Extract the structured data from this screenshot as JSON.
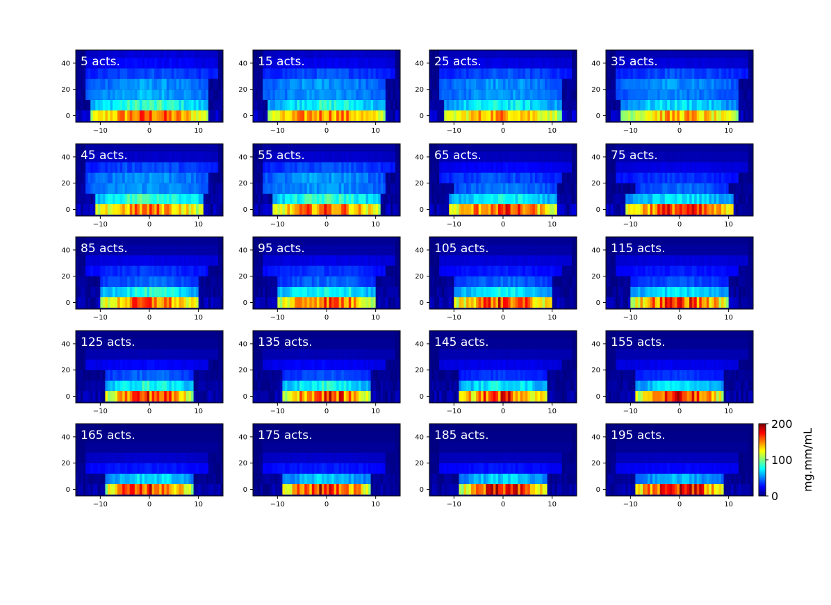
{
  "figure": {
    "colorbar": {
      "label": "mg.mm/mL",
      "ticks": [
        0,
        100,
        200
      ],
      "range": [
        0,
        200
      ],
      "colormap": "jet"
    }
  },
  "chart_data": {
    "type": "heatmap",
    "xlim": [
      -15,
      15
    ],
    "ylim": [
      -5,
      50
    ],
    "xticks": [
      -10,
      0,
      10
    ],
    "yticks": [
      0,
      20,
      40
    ],
    "colormap": "jet",
    "vmin": 0,
    "vmax": 200,
    "row_centers": [
      0,
      8,
      16,
      24,
      32,
      40,
      48
    ],
    "panels": [
      {
        "label": "5 acts.",
        "rows": [
          [
            -12,
            12,
            155,
            60
          ],
          [
            -12,
            12,
            85,
            25
          ],
          [
            -13,
            12,
            60,
            25
          ],
          [
            -13,
            12,
            55,
            20
          ],
          [
            -13,
            14,
            40,
            15
          ],
          [
            -13,
            14,
            25,
            10
          ],
          [
            -13,
            14,
            18,
            8
          ]
        ]
      },
      {
        "label": "15 acts.",
        "rows": [
          [
            -12,
            12,
            150,
            60
          ],
          [
            -12,
            12,
            80,
            25
          ],
          [
            -13,
            12,
            55,
            25
          ],
          [
            -13,
            12,
            55,
            20
          ],
          [
            -13,
            14,
            40,
            15
          ],
          [
            -13,
            14,
            22,
            10
          ],
          [
            -13,
            14,
            15,
            8
          ]
        ]
      },
      {
        "label": "25 acts.",
        "rows": [
          [
            -12,
            12,
            145,
            60
          ],
          [
            -12,
            12,
            75,
            25
          ],
          [
            -13,
            12,
            55,
            25
          ],
          [
            -13,
            12,
            55,
            20
          ],
          [
            -13,
            14,
            40,
            15
          ],
          [
            -13,
            14,
            20,
            10
          ],
          [
            -13,
            14,
            12,
            8
          ]
        ]
      },
      {
        "label": "35 acts.",
        "rows": [
          [
            -12,
            12,
            140,
            55
          ],
          [
            -12,
            12,
            70,
            25
          ],
          [
            -13,
            12,
            50,
            25
          ],
          [
            -13,
            12,
            55,
            20
          ],
          [
            -13,
            14,
            40,
            15
          ],
          [
            -13,
            14,
            18,
            10
          ],
          [
            -13,
            14,
            10,
            8
          ]
        ]
      },
      {
        "label": "45 acts.",
        "rows": [
          [
            -11,
            11,
            150,
            55
          ],
          [
            -11,
            11,
            90,
            30
          ],
          [
            -13,
            12,
            55,
            25
          ],
          [
            -13,
            12,
            55,
            20
          ],
          [
            -13,
            14,
            40,
            15
          ],
          [
            -13,
            14,
            15,
            8
          ],
          [
            -13,
            14,
            8,
            6
          ]
        ]
      },
      {
        "label": "55 acts.",
        "rows": [
          [
            -11,
            11,
            155,
            55
          ],
          [
            -11,
            11,
            85,
            30
          ],
          [
            -13,
            12,
            55,
            25
          ],
          [
            -13,
            12,
            55,
            20
          ],
          [
            -13,
            14,
            40,
            15
          ],
          [
            -13,
            14,
            15,
            8
          ],
          [
            -13,
            14,
            8,
            6
          ]
        ]
      },
      {
        "label": "65 acts.",
        "rows": [
          [
            -11,
            11,
            160,
            55
          ],
          [
            -11,
            11,
            75,
            30
          ],
          [
            -10,
            11,
            50,
            20
          ],
          [
            -13,
            12,
            40,
            15
          ],
          [
            -13,
            14,
            25,
            12
          ],
          [
            -13,
            14,
            12,
            8
          ],
          [
            -13,
            14,
            6,
            5
          ]
        ]
      },
      {
        "label": "75 acts.",
        "rows": [
          [
            -11,
            11,
            165,
            55
          ],
          [
            -11,
            11,
            70,
            30
          ],
          [
            -9,
            10,
            45,
            20
          ],
          [
            -13,
            12,
            35,
            15
          ],
          [
            -13,
            14,
            20,
            12
          ],
          [
            -13,
            14,
            10,
            8
          ],
          [
            -13,
            14,
            6,
            5
          ]
        ]
      },
      {
        "label": "85 acts.",
        "rows": [
          [
            -10,
            10,
            155,
            50
          ],
          [
            -10,
            10,
            80,
            30
          ],
          [
            -10,
            10,
            45,
            20
          ],
          [
            -13,
            12,
            35,
            15
          ],
          [
            -13,
            14,
            20,
            12
          ],
          [
            -13,
            14,
            8,
            6
          ],
          [
            -13,
            14,
            4,
            4
          ]
        ]
      },
      {
        "label": "95 acts.",
        "rows": [
          [
            -10,
            10,
            160,
            50
          ],
          [
            -10,
            10,
            80,
            30
          ],
          [
            -10,
            10,
            45,
            20
          ],
          [
            -13,
            12,
            35,
            15
          ],
          [
            -13,
            14,
            20,
            12
          ],
          [
            -13,
            14,
            8,
            6
          ],
          [
            -13,
            14,
            4,
            4
          ]
        ]
      },
      {
        "label": "105 acts.",
        "rows": [
          [
            -10,
            10,
            165,
            50
          ],
          [
            -10,
            10,
            75,
            30
          ],
          [
            -10,
            10,
            45,
            20
          ],
          [
            -13,
            12,
            30,
            15
          ],
          [
            -13,
            14,
            18,
            12
          ],
          [
            -13,
            14,
            8,
            6
          ],
          [
            -13,
            14,
            4,
            4
          ]
        ]
      },
      {
        "label": "115 acts.",
        "rows": [
          [
            -10,
            10,
            165,
            50
          ],
          [
            -10,
            10,
            70,
            30
          ],
          [
            -10,
            10,
            40,
            20
          ],
          [
            -13,
            12,
            30,
            15
          ],
          [
            -13,
            14,
            18,
            12
          ],
          [
            -13,
            14,
            6,
            5
          ],
          [
            -13,
            14,
            3,
            3
          ]
        ]
      },
      {
        "label": "125 acts.",
        "rows": [
          [
            -9,
            9,
            165,
            45
          ],
          [
            -9,
            9,
            80,
            30
          ],
          [
            -9,
            9,
            45,
            20
          ],
          [
            -13,
            12,
            25,
            12
          ],
          [
            -13,
            14,
            10,
            8
          ],
          [
            -13,
            14,
            4,
            4
          ],
          [
            -13,
            14,
            2,
            2
          ]
        ]
      },
      {
        "label": "135 acts.",
        "rows": [
          [
            -9,
            9,
            165,
            45
          ],
          [
            -9,
            9,
            80,
            30
          ],
          [
            -9,
            9,
            40,
            20
          ],
          [
            -13,
            12,
            25,
            12
          ],
          [
            -13,
            14,
            10,
            8
          ],
          [
            -13,
            14,
            4,
            4
          ],
          [
            -13,
            14,
            2,
            2
          ]
        ]
      },
      {
        "label": "145 acts.",
        "rows": [
          [
            -9,
            9,
            165,
            45
          ],
          [
            -9,
            9,
            75,
            30
          ],
          [
            -9,
            9,
            35,
            20
          ],
          [
            -13,
            12,
            22,
            12
          ],
          [
            -13,
            14,
            10,
            8
          ],
          [
            -13,
            14,
            4,
            4
          ],
          [
            -13,
            14,
            2,
            2
          ]
        ]
      },
      {
        "label": "155 acts.",
        "rows": [
          [
            -9,
            9,
            165,
            45
          ],
          [
            -9,
            9,
            70,
            30
          ],
          [
            -9,
            9,
            35,
            20
          ],
          [
            -13,
            12,
            22,
            12
          ],
          [
            -13,
            14,
            10,
            8
          ],
          [
            -13,
            14,
            4,
            4
          ],
          [
            -13,
            14,
            2,
            2
          ]
        ]
      },
      {
        "label": "165 acts.",
        "rows": [
          [
            -9,
            9,
            170,
            40
          ],
          [
            -9,
            9,
            70,
            25
          ],
          [
            -13,
            12,
            30,
            15
          ],
          [
            -13,
            12,
            15,
            10
          ],
          [
            -13,
            14,
            5,
            5
          ],
          [
            -13,
            14,
            2,
            2
          ],
          [
            -13,
            14,
            1,
            1
          ]
        ]
      },
      {
        "label": "175 acts.",
        "rows": [
          [
            -9,
            9,
            170,
            40
          ],
          [
            -9,
            9,
            65,
            25
          ],
          [
            -13,
            12,
            30,
            15
          ],
          [
            -13,
            12,
            15,
            10
          ],
          [
            -13,
            14,
            5,
            5
          ],
          [
            -13,
            14,
            2,
            2
          ],
          [
            -13,
            14,
            1,
            1
          ]
        ]
      },
      {
        "label": "185 acts.",
        "rows": [
          [
            -9,
            9,
            170,
            40
          ],
          [
            -9,
            9,
            65,
            25
          ],
          [
            -13,
            12,
            28,
            15
          ],
          [
            -13,
            12,
            12,
            10
          ],
          [
            -13,
            14,
            4,
            4
          ],
          [
            -13,
            14,
            2,
            2
          ],
          [
            -13,
            14,
            1,
            1
          ]
        ]
      },
      {
        "label": "195 acts.",
        "rows": [
          [
            -9,
            9,
            175,
            40
          ],
          [
            -9,
            9,
            60,
            25
          ],
          [
            -13,
            12,
            25,
            15
          ],
          [
            -13,
            12,
            12,
            10
          ],
          [
            -13,
            14,
            4,
            4
          ],
          [
            -13,
            14,
            2,
            2
          ],
          [
            -13,
            14,
            1,
            1
          ]
        ]
      }
    ]
  }
}
